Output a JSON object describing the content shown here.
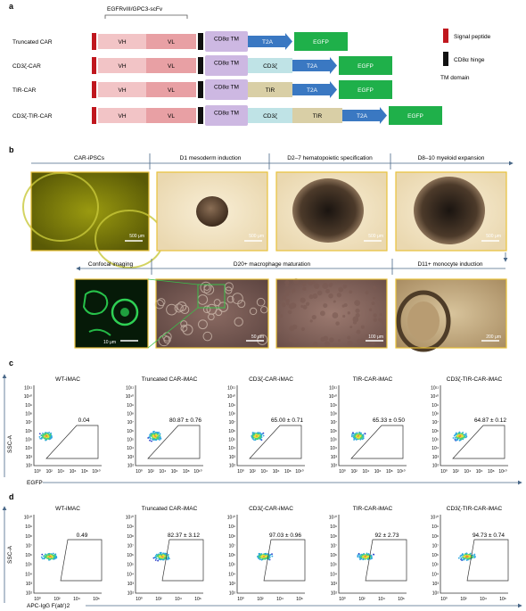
{
  "panel_labels": {
    "a": "a",
    "b": "b",
    "c": "c",
    "d": "d"
  },
  "panel_a": {
    "scfv_label": "EGFRvIII/GPC3-scFv",
    "vh": "VH",
    "vl": "VL",
    "constructs": [
      {
        "name": "Truncated CAR",
        "tm": "CD8α TM",
        "t2a": "T2A",
        "egfp": "EGFP"
      },
      {
        "name": "CD3ζ-CAR",
        "tm": "CD8α TM",
        "sig1": "CD3ζ",
        "t2a": "T2A",
        "egfp": "EGFP"
      },
      {
        "name": "TIR-CAR",
        "tm": "CD8α TM",
        "sig1": "TIR",
        "t2a": "T2A",
        "egfp": "EGFP"
      },
      {
        "name": "CD3ζ-TIR-CAR",
        "tm": "CD8α TM",
        "sig1": "CD3ζ",
        "sig2": "TIR",
        "t2a": "T2A",
        "egfp": "EGFP"
      }
    ],
    "legend": {
      "signal": "Signal peptide",
      "hinge": "CD8α hinge",
      "tm": "TM domain"
    },
    "colors": {
      "signal": "#c0171e",
      "hinge": "#111111",
      "vh": "#f2c4c6",
      "vl": "#e8a0a4",
      "tm": "#cdb8e2",
      "cd3z": "#bfe3e6",
      "tir": "#d9cfa6",
      "t2a": "#3a78c2",
      "egfp": "#1fb04a"
    }
  },
  "panel_b": {
    "stages_top": [
      "CAR-iPSCs",
      "D1 mesoderm induction",
      "D2–7 hematopoietic specification",
      "D8–10 myeloid expansion"
    ],
    "stages_bottom": [
      "Confocal imaging",
      "D20+ macrophage maturation",
      "D11+ monocyte induction"
    ],
    "scales_top": [
      "500 μm",
      "500 μm",
      "500 μm",
      "500 μm"
    ],
    "scales_bottom": [
      "10 μm",
      "50 μm",
      "100 μm",
      "200 μm"
    ]
  },
  "panel_c": {
    "y_axis": "SSC-A",
    "x_axis": "EGFP",
    "y_ticks": [
      "10¹¹",
      "10¹⁰",
      "10⁹",
      "10⁸",
      "10⁷",
      "10⁶",
      "10⁵",
      "10⁴",
      "10³",
      "10²"
    ],
    "x_ticks": [
      "10⁰",
      "10²",
      "10⁴",
      "10⁶",
      "10⁸",
      "10¹⁰"
    ],
    "plots": [
      {
        "title": "WT-iMAC",
        "value": "0.04"
      },
      {
        "title": "Truncated CAR-iMAC",
        "value": "80.87 ± 0.76"
      },
      {
        "title": "CD3ζ-CAR-iMAC",
        "value": "65.00 ± 0.71"
      },
      {
        "title": "TIR-CAR-iMAC",
        "value": "65.33 ± 0.50"
      },
      {
        "title": "CD3ζ-TIR-CAR-iMAC",
        "value": "64.87 ± 0.12"
      }
    ]
  },
  "panel_d": {
    "y_axis": "SSC-A",
    "x_axis": "APC-IgG F(ab')2",
    "y_ticks": [
      "10¹⁰",
      "10⁹",
      "10⁸",
      "10⁷",
      "10⁶",
      "10⁵",
      "10⁴",
      "10³",
      "10²"
    ],
    "x_ticks": [
      "10⁰",
      "10²",
      "10⁴",
      "10⁶"
    ],
    "plots": [
      {
        "title": "WT-iMAC",
        "value": "0.49"
      },
      {
        "title": "Truncated CAR-iMAC",
        "value": "82.37 ± 3.12"
      },
      {
        "title": "CD3ζ-CAR-iMAC",
        "value": "97.03 ± 0.96"
      },
      {
        "title": "TIR-CAR-iMAC",
        "value": "92 ± 2.73"
      },
      {
        "title": "CD3ζ-TIR-CAR-iMAC",
        "value": "94.73 ± 0.74"
      }
    ]
  }
}
